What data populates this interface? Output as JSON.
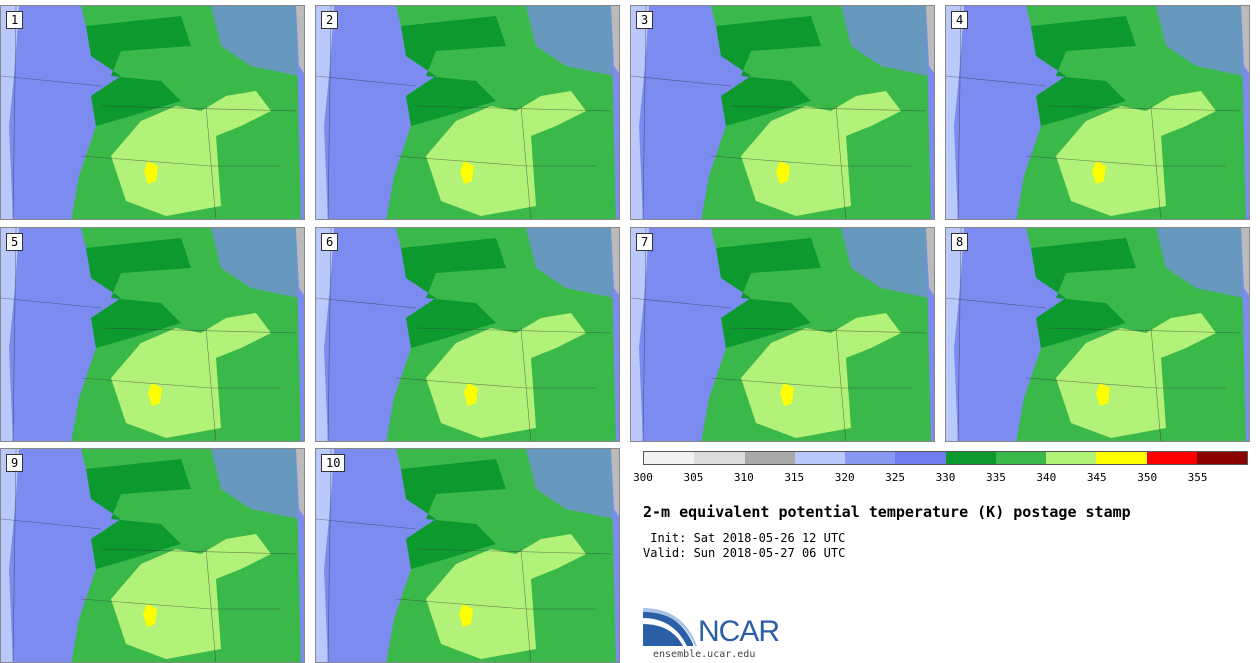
{
  "title": "2-m equivalent potential temperature (K) postage stamp",
  "init": " Init: Sat 2018-05-26 12 UTC",
  "valid": "Valid: Sun 2018-05-27 06 UTC",
  "stamps": [
    "1",
    "2",
    "3",
    "4",
    "5",
    "6",
    "7",
    "8",
    "9",
    "10"
  ],
  "colorbar": {
    "ticks": [
      "300",
      "305",
      "310",
      "315",
      "320",
      "325",
      "330",
      "335",
      "340",
      "345",
      "350",
      "355"
    ],
    "colors": [
      "#f2f2f2",
      "#dcdcdc",
      "#a9a9a9",
      "#b9c9fb",
      "#8899f2",
      "#6f7cf0",
      "#0c9a2e",
      "#3bb84a",
      "#b3f278",
      "#ffff00",
      "#ff0000",
      "#8b0000"
    ]
  },
  "logo": {
    "name": "NCAR",
    "url": "ensemble.ucar.edu"
  }
}
